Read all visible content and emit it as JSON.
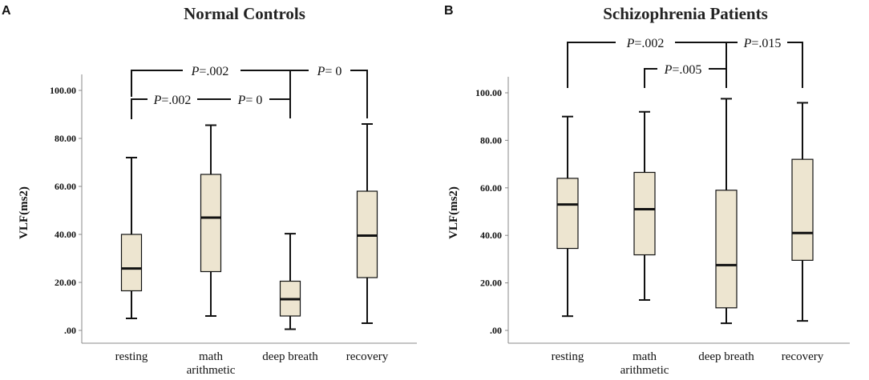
{
  "chart_data": [
    {
      "type": "boxplot",
      "panel_label": "A",
      "title": "Normal Controls",
      "ylabel": "VLF(ms2)",
      "ylim": [
        0,
        100
      ],
      "yticks": [
        ".00",
        "20.00",
        "40.00",
        "60.00",
        "80.00",
        "100.00"
      ],
      "categories": [
        "resting",
        "math arithmetic",
        "deep breath",
        "recovery"
      ],
      "category_lines": [
        [
          "resting"
        ],
        [
          "math",
          "arithmetic"
        ],
        [
          "deep breath"
        ],
        [
          "recovery"
        ]
      ],
      "boxes": [
        {
          "min": 5,
          "q1": 16.5,
          "median": 25.8,
          "q3": 40,
          "max": 72
        },
        {
          "min": 6,
          "q1": 24.5,
          "median": 47,
          "q3": 65,
          "max": 85.5
        },
        {
          "min": 0.5,
          "q1": 6,
          "median": 13,
          "q3": 20.5,
          "max": 40.3
        },
        {
          "min": 3,
          "q1": 22,
          "median": 39.5,
          "q3": 58,
          "max": 86
        }
      ],
      "annotations": [
        {
          "from": 0,
          "to": 2,
          "level": 108,
          "drop_left": 108,
          "drop_right": 108,
          "p_label": "P",
          "p_value": "=.002",
          "label_at": 0.5
        },
        {
          "from": 0,
          "to": 2,
          "level": 96,
          "drop_left": 96,
          "drop_right": 96,
          "p_label": "P",
          "p_value": "=.002",
          "label_at": 0.25,
          "second_label_at": 0.72,
          "second_p_value": "= 0"
        },
        {
          "from": 2,
          "to": 3,
          "level": 108,
          "drop_left": 108,
          "drop_right": 108,
          "p_label": "P",
          "p_value": "= 0",
          "label_at": 0.5
        }
      ],
      "annotation_texts": [
        {
          "p": "P",
          "v": "=.002"
        },
        {
          "p": "P",
          "v": "=.002"
        },
        {
          "p": "P",
          "v": "= 0"
        },
        {
          "p": "P",
          "v": "= 0"
        }
      ]
    },
    {
      "type": "boxplot",
      "panel_label": "B",
      "title": "Schizophrenia Patients",
      "ylabel": "VLF(ms2)",
      "ylim": [
        0,
        100
      ],
      "yticks": [
        ".00",
        "20.00",
        "40.00",
        "60.00",
        "80.00",
        "100.00"
      ],
      "categories": [
        "resting",
        "math arithmetic",
        "deep breath",
        "recovery"
      ],
      "category_lines": [
        [
          "resting"
        ],
        [
          "math",
          "arithmetic"
        ],
        [
          "deep breath"
        ],
        [
          "recovery"
        ]
      ],
      "boxes": [
        {
          "min": 6,
          "q1": 34.5,
          "median": 53,
          "q3": 64,
          "max": 90
        },
        {
          "min": 12.8,
          "q1": 31.8,
          "median": 51,
          "q3": 66.5,
          "max": 92
        },
        {
          "min": 3,
          "q1": 9.5,
          "median": 27.5,
          "q3": 59,
          "max": 97.5
        },
        {
          "min": 4,
          "q1": 29.5,
          "median": 41,
          "q3": 72,
          "max": 95.8
        }
      ],
      "annotation_texts": [
        {
          "p": "P",
          "v": "=.002"
        },
        {
          "p": "P",
          "v": "=.005"
        },
        {
          "p": "P",
          "v": "=.015"
        }
      ]
    }
  ],
  "colors": {
    "box_fill": "#ede5d0",
    "stroke": "#111111",
    "axis": "#888888"
  }
}
